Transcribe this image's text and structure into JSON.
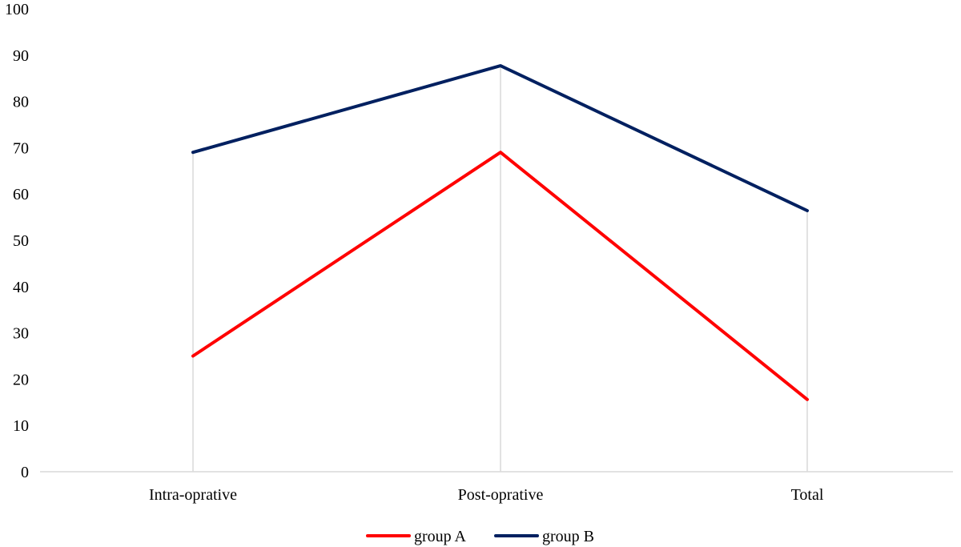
{
  "chart_data": {
    "type": "line",
    "title": "",
    "xlabel": "",
    "ylabel": "",
    "categories": [
      "Intra-oprative",
      "Post-oprative",
      "Total"
    ],
    "ylim": [
      0,
      100
    ],
    "yticks": [
      0,
      10,
      20,
      30,
      40,
      50,
      60,
      70,
      80,
      90,
      100
    ],
    "grid": "vertical lines at categories",
    "legend_position": "bottom",
    "series": [
      {
        "name": "group A",
        "values": [
          25,
          69,
          15.6
        ],
        "color": "#ff0000"
      },
      {
        "name": "group B",
        "values": [
          69,
          87.7,
          56.4
        ],
        "color": "#002060"
      }
    ]
  }
}
